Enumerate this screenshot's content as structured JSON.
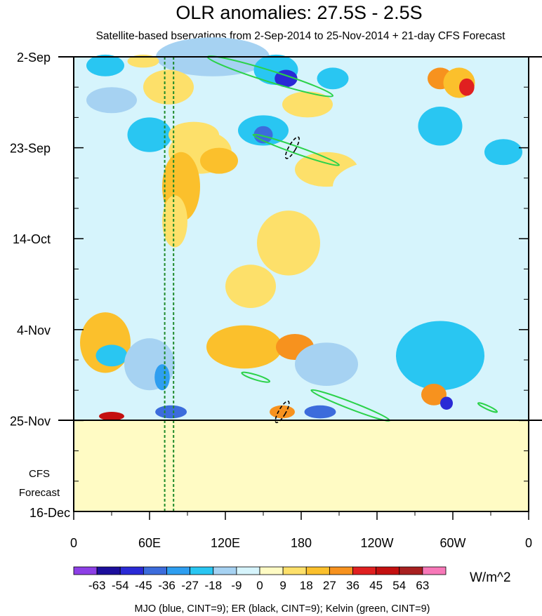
{
  "chart_data": {
    "type": "heatmap",
    "title": "OLR anomalies: 27.5S - 2.5S",
    "subtitle": "Satellite-based bservations from 2-Sep-2014 to 25-Nov-2014 + 21-day CFS Forecast",
    "x_ticks": [
      "0",
      "60E",
      "120E",
      "180",
      "120W",
      "60W",
      "0"
    ],
    "y_ticks": [
      "2-Sep",
      "23-Sep",
      "14-Oct",
      "4-Nov",
      "25-Nov",
      "16-Dec"
    ],
    "forecast_label": [
      "CFS",
      "Forecast"
    ],
    "colorbar": {
      "labels": [
        "-63",
        "-54",
        "-45",
        "-36",
        "-27",
        "-18",
        "-9",
        "0",
        "9",
        "18",
        "27",
        "36",
        "45",
        "54",
        "63"
      ],
      "colors": [
        "#8d3fe6",
        "#1c0e9c",
        "#2a2ad6",
        "#3c6cdc",
        "#2e9ef0",
        "#29c6f2",
        "#a6d2f2",
        "#d6f4fc",
        "#fffbc4",
        "#fde06a",
        "#fbc02c",
        "#f7921e",
        "#e02020",
        "#c41010",
        "#a82020",
        "#f778b8"
      ],
      "unit": "W/m^2"
    },
    "footnote": "MJO (blue, CINT=9); ER (black, CINT=9); Kelvin (green, CINT=9)",
    "x_range_deg": [
      0,
      360
    ],
    "time_range": [
      "2014-09-02",
      "2014-12-16"
    ],
    "observation_end": "2014-11-25",
    "mjo_lon_lines_deg": [
      72,
      79
    ],
    "cells": [
      {
        "lon": 110,
        "date": "2014-09-02",
        "days": 9,
        "width": 90,
        "value": -18
      },
      {
        "lon": 25,
        "date": "2014-09-04",
        "days": 5,
        "width": 30,
        "value": -27
      },
      {
        "lon": 55,
        "date": "2014-09-03",
        "days": 3,
        "width": 25,
        "value": 9
      },
      {
        "lon": 160,
        "date": "2014-09-05",
        "days": 7,
        "width": 35,
        "value": -27
      },
      {
        "lon": 168,
        "date": "2014-09-07",
        "days": 4,
        "width": 18,
        "value": -54
      },
      {
        "lon": 205,
        "date": "2014-09-07",
        "days": 5,
        "width": 25,
        "value": -27
      },
      {
        "lon": 290,
        "date": "2014-09-07",
        "days": 5,
        "width": 20,
        "value": 27
      },
      {
        "lon": 305,
        "date": "2014-09-08",
        "days": 7,
        "width": 25,
        "value": 18
      },
      {
        "lon": 311,
        "date": "2014-09-09",
        "days": 4,
        "width": 12,
        "value": 36
      },
      {
        "lon": 75,
        "date": "2014-09-09",
        "days": 8,
        "width": 40,
        "value": 9
      },
      {
        "lon": 30,
        "date": "2014-09-12",
        "days": 6,
        "width": 40,
        "value": -18
      },
      {
        "lon": 185,
        "date": "2014-09-13",
        "days": 6,
        "width": 40,
        "value": 9
      },
      {
        "lon": 150,
        "date": "2014-09-19",
        "days": 7,
        "width": 40,
        "value": -27
      },
      {
        "lon": 150,
        "date": "2014-09-20",
        "days": 4,
        "width": 15,
        "value": -45
      },
      {
        "lon": 60,
        "date": "2014-09-20",
        "days": 8,
        "width": 35,
        "value": -27
      },
      {
        "lon": 95,
        "date": "2014-09-20",
        "days": 6,
        "width": 40,
        "value": 9
      },
      {
        "lon": 100,
        "date": "2014-09-24",
        "days": 10,
        "width": 50,
        "value": 9
      },
      {
        "lon": 115,
        "date": "2014-09-26",
        "days": 6,
        "width": 30,
        "value": 18
      },
      {
        "lon": 290,
        "date": "2014-09-18",
        "days": 9,
        "width": 35,
        "value": -27
      },
      {
        "lon": 340,
        "date": "2014-09-24",
        "days": 6,
        "width": 30,
        "value": -27
      },
      {
        "lon": 200,
        "date": "2014-09-28",
        "days": 8,
        "width": 50,
        "value": 9
      },
      {
        "lon": 85,
        "date": "2014-10-02",
        "days": 16,
        "width": 30,
        "value": 18
      },
      {
        "lon": 80,
        "date": "2014-10-10",
        "days": 12,
        "width": 20,
        "value": 9
      },
      {
        "lon": 245,
        "date": "2014-10-02",
        "days": 12,
        "width": 80,
        "value": -9
      },
      {
        "lon": 170,
        "date": "2014-10-15",
        "days": 15,
        "width": 50,
        "value": 9
      },
      {
        "lon": 140,
        "date": "2014-10-25",
        "days": 10,
        "width": 40,
        "value": 9
      },
      {
        "lon": 25,
        "date": "2014-11-07",
        "days": 14,
        "width": 40,
        "value": 18
      },
      {
        "lon": 30,
        "date": "2014-11-10",
        "days": 5,
        "width": 25,
        "value": -27
      },
      {
        "lon": 60,
        "date": "2014-11-12",
        "days": 12,
        "width": 40,
        "value": -18
      },
      {
        "lon": 70,
        "date": "2014-11-15",
        "days": 6,
        "width": 12,
        "value": -36
      },
      {
        "lon": 135,
        "date": "2014-11-08",
        "days": 10,
        "width": 60,
        "value": 18
      },
      {
        "lon": 175,
        "date": "2014-11-08",
        "days": 6,
        "width": 30,
        "value": 27
      },
      {
        "lon": 200,
        "date": "2014-11-12",
        "days": 10,
        "width": 50,
        "value": -18
      },
      {
        "lon": 290,
        "date": "2014-11-10",
        "days": 16,
        "width": 70,
        "value": -27
      },
      {
        "lon": 285,
        "date": "2014-11-19",
        "days": 5,
        "width": 20,
        "value": 27
      },
      {
        "lon": 295,
        "date": "2014-11-21",
        "days": 3,
        "width": 10,
        "value": -54
      },
      {
        "lon": 30,
        "date": "2014-11-24",
        "days": 2,
        "width": 20,
        "value": 45
      },
      {
        "lon": 77,
        "date": "2014-11-23",
        "days": 3,
        "width": 25,
        "value": -45
      },
      {
        "lon": 165,
        "date": "2014-11-23",
        "days": 3,
        "width": 20,
        "value": 27
      },
      {
        "lon": 195,
        "date": "2014-11-23",
        "days": 3,
        "width": 25,
        "value": -45
      }
    ],
    "kelvin_contours": [
      {
        "points": [
          [
            106,
            "2014-09-02"
          ],
          [
            205,
            "2014-09-11"
          ]
        ],
        "width": 16
      },
      {
        "points": [
          [
            142,
            "2014-09-20"
          ],
          [
            210,
            "2014-09-27"
          ]
        ],
        "width": 10
      },
      {
        "points": [
          [
            188,
            "2014-11-18"
          ],
          [
            250,
            "2014-11-25"
          ]
        ],
        "width": 10
      },
      {
        "points": [
          [
            133,
            "2014-11-14"
          ],
          [
            155,
            "2014-11-16"
          ]
        ],
        "width": 7
      },
      {
        "points": [
          [
            320,
            "2014-11-21"
          ],
          [
            335,
            "2014-11-23"
          ]
        ],
        "width": 5
      }
    ],
    "er_contours": [
      {
        "lon": 173,
        "date": "2014-09-23",
        "days": 5,
        "width": 5
      },
      {
        "lon": 165,
        "date": "2014-11-23",
        "days": 5,
        "width": 5
      }
    ]
  }
}
